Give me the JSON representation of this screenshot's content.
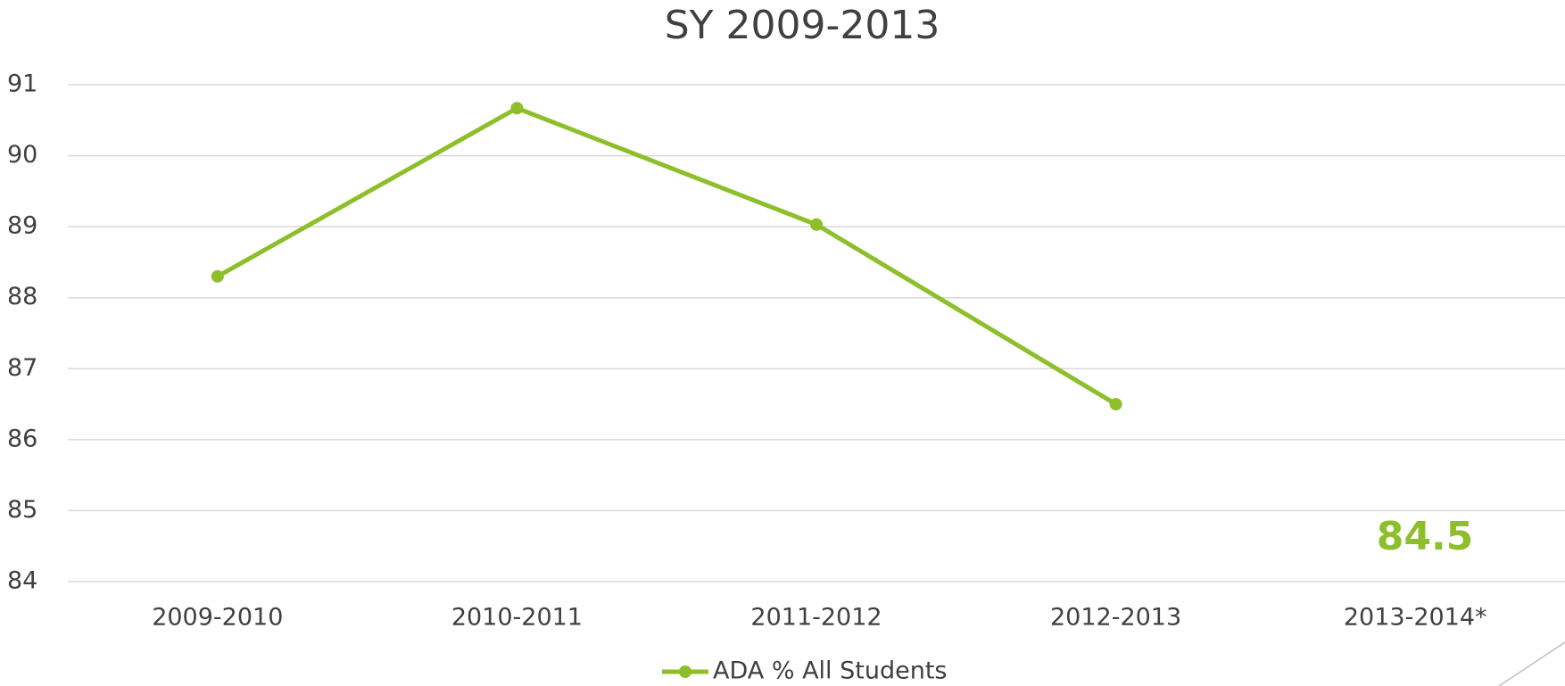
{
  "chart_data": {
    "type": "line",
    "title": "SY 2009-2013",
    "categories": [
      "2009-2010",
      "2010-2011",
      "2011-2012",
      "2012-2013",
      "2013-2014*"
    ],
    "series": [
      {
        "name": "ADA % All Students",
        "color": "#8dbf2a",
        "values": [
          88.3,
          90.67,
          89.03,
          86.5,
          null
        ]
      }
    ],
    "annotations": [
      "84.5"
    ],
    "ylim": [
      84,
      91
    ],
    "yticks": [
      84,
      85,
      86,
      87,
      88,
      89,
      90,
      91
    ],
    "grid": true,
    "legend": "bottom"
  }
}
